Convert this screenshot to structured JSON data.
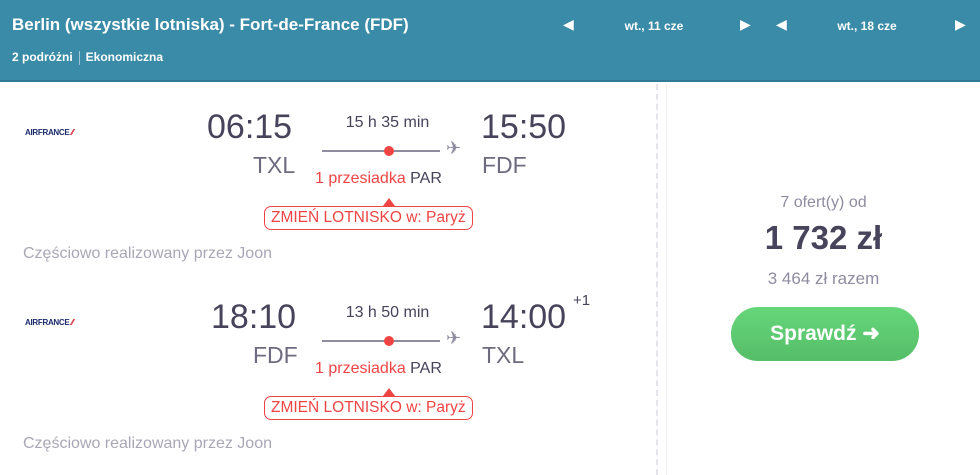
{
  "header": {
    "title": "Berlin (wszystkie lotniska) - Fort-de-France (FDF)",
    "travelers": "2 podróżni",
    "cabin": "Ekonomiczna",
    "outbound_date": "wt., 11 cze",
    "return_date": "wt., 18 cze",
    "prev_icon": "caret-left-icon",
    "next_icon": "caret-right-icon"
  },
  "segments": [
    {
      "airline": "AIRFRANCE",
      "dep_time": "06:15",
      "dep_airport": "TXL",
      "duration": "15 h 35 min",
      "arr_time": "15:50",
      "arr_airport": "FDF",
      "day_offset": "",
      "stops": "1 przesiadka",
      "stop_airport": "PAR",
      "warning": "ZMIEŃ LOTNISKO w: Paryż",
      "operated": "Częściowo realizowany przez Joon"
    },
    {
      "airline": "AIRFRANCE",
      "dep_time": "18:10",
      "dep_airport": "FDF",
      "duration": "13 h 50 min",
      "arr_time": "14:00",
      "arr_airport": "TXL",
      "day_offset": "+1",
      "stops": "1 przesiadka",
      "stop_airport": "PAR",
      "warning": "ZMIEŃ LOTNISKO w: Paryż",
      "operated": "Częściowo realizowany przez Joon"
    }
  ],
  "price": {
    "offers": "7 ofert(y) od",
    "per_person": "1 732 zł",
    "total": "3 464 zł razem",
    "cta": "Sprawdź ➜"
  },
  "colors": {
    "header": "#3a8ba8",
    "accent_red": "#ef4444",
    "cta_green": "#5cc96f"
  }
}
